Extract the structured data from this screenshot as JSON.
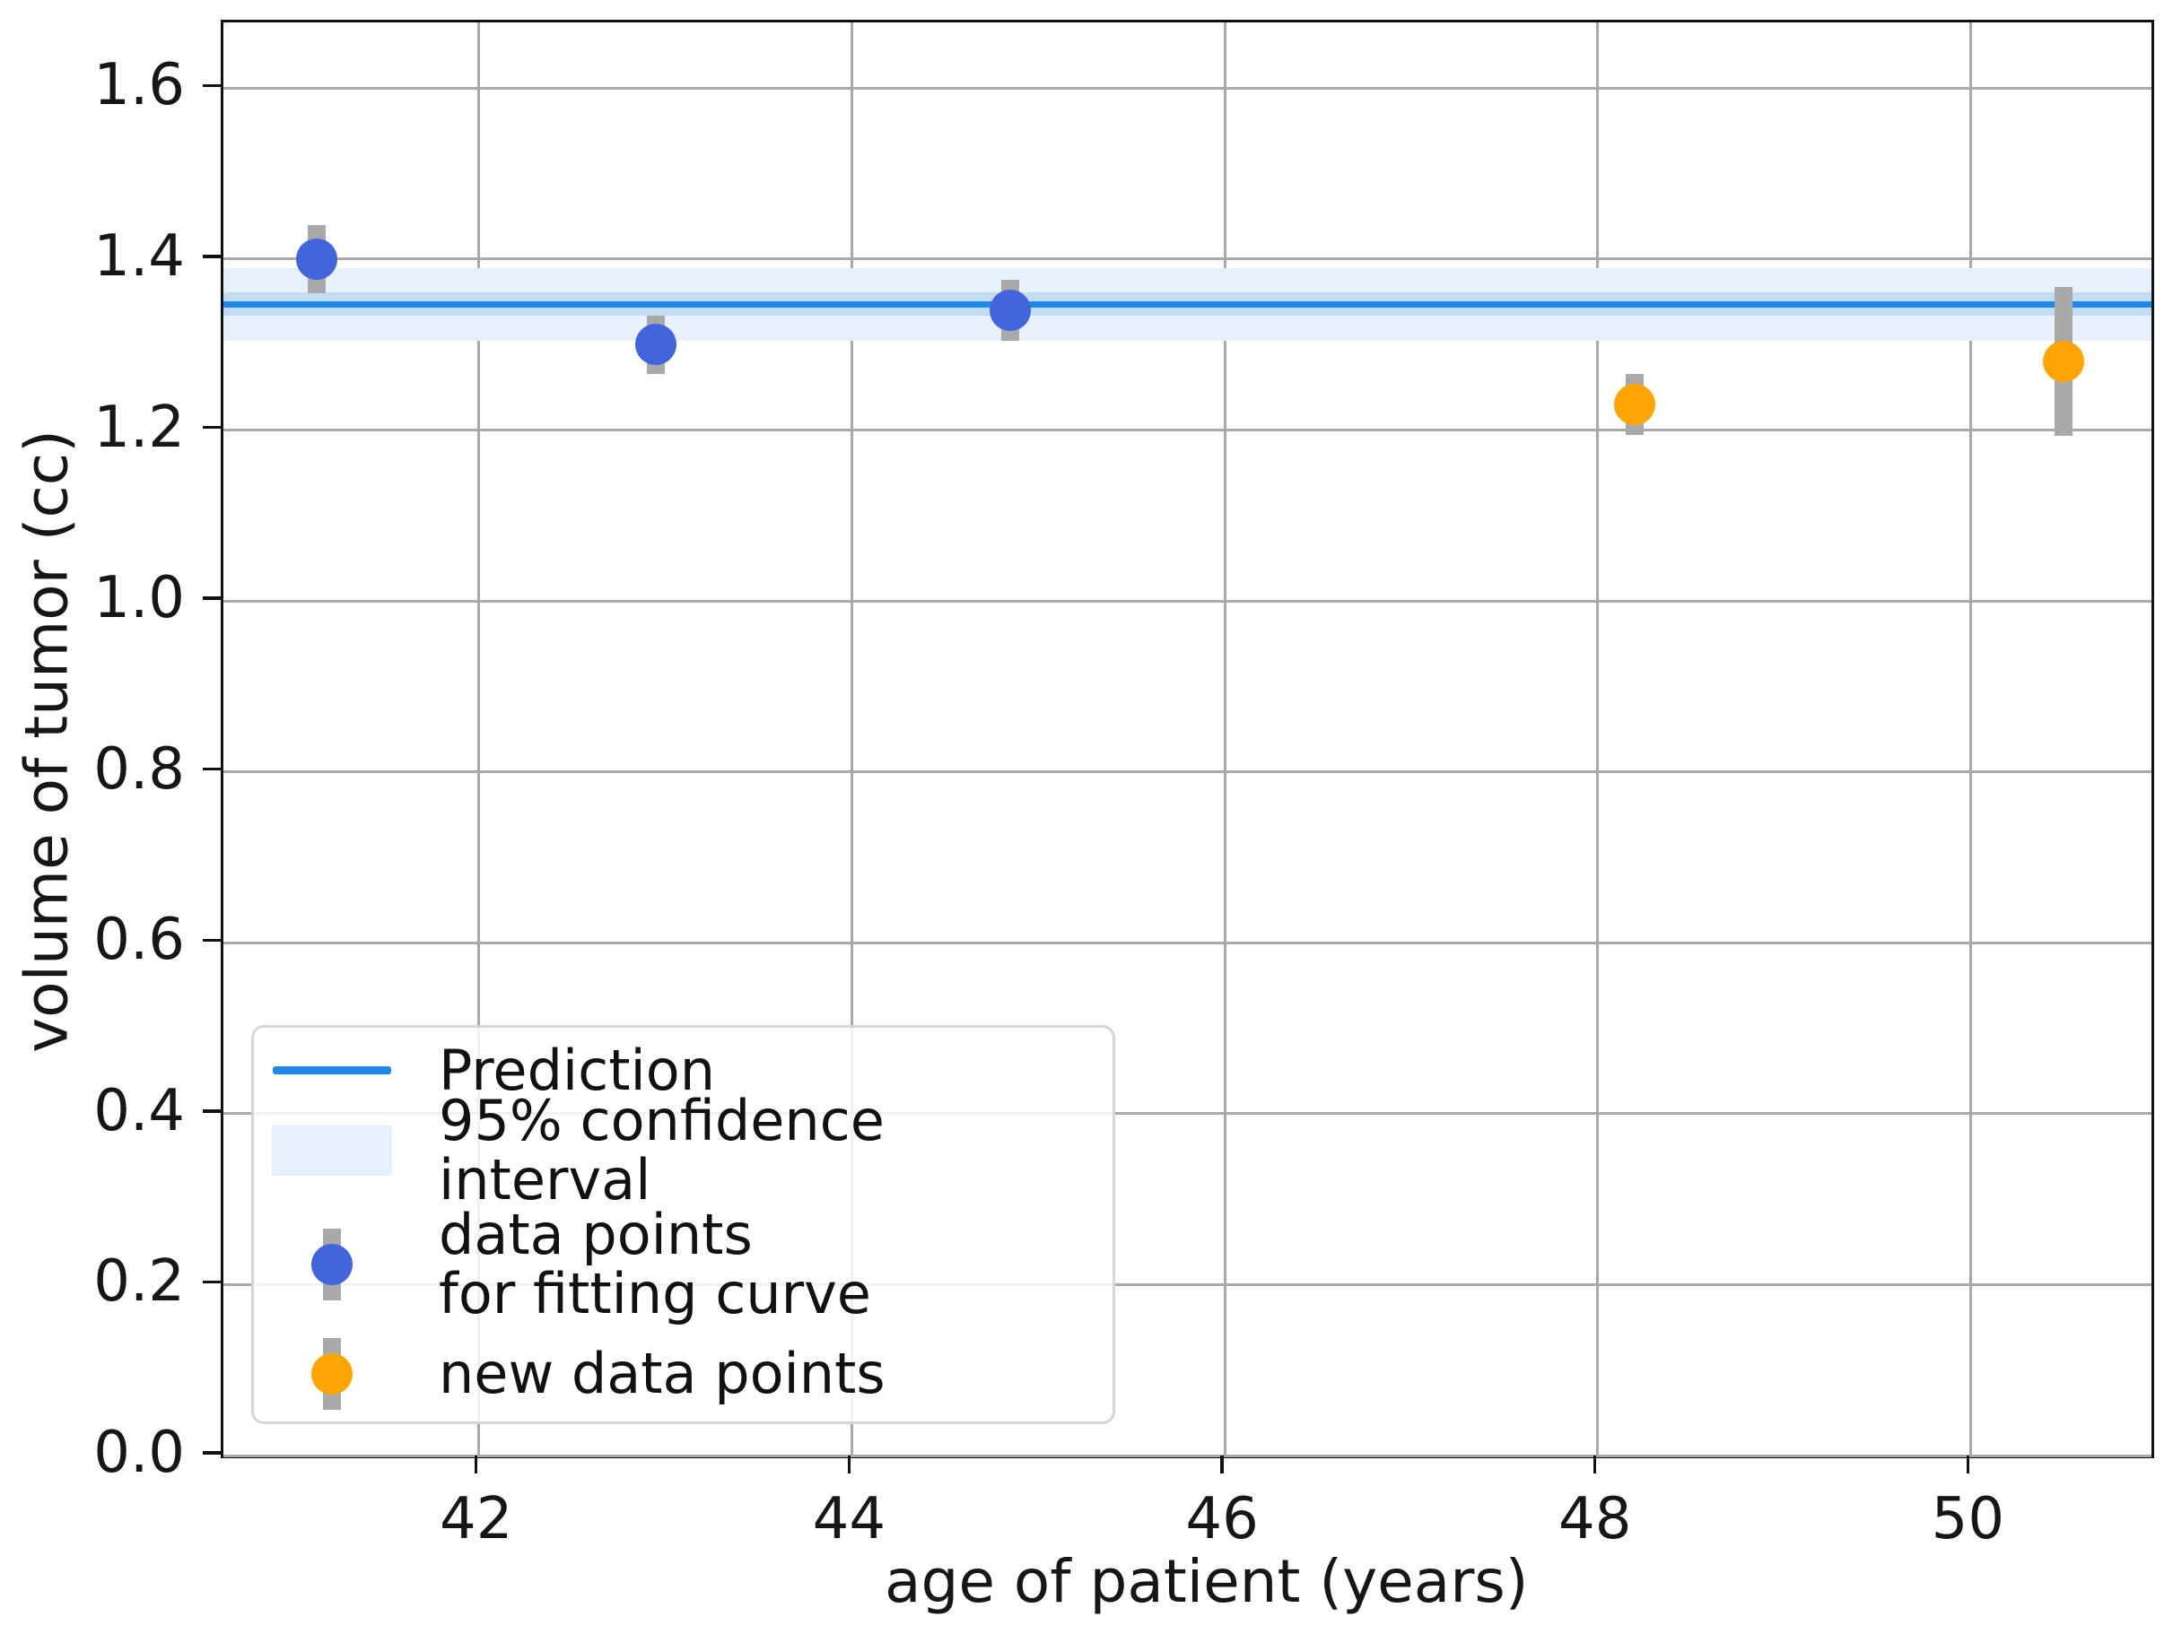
{
  "chart_data": {
    "type": "scatter",
    "title": "",
    "xlabel": "age of patient (years)",
    "ylabel": "volume of tumor (cc)",
    "xlim": [
      40.63,
      50.97
    ],
    "ylim": [
      0,
      1.677
    ],
    "x_ticks": [
      42,
      44,
      46,
      48,
      50
    ],
    "y_ticks": [
      0.0,
      0.2,
      0.4,
      0.6,
      0.8,
      1.0,
      1.2,
      1.4,
      1.6
    ],
    "grid": true,
    "prediction": {
      "label": "Prediction",
      "value": 1.347
    },
    "confidence_interval": {
      "label": "95% confidence interval",
      "low": 1.304,
      "high": 1.389
    },
    "series": [
      {
        "name": "data points\nfor fitting curve",
        "points": [
          {
            "x": 41.13,
            "y": 1.4,
            "yerr": 0.04
          },
          {
            "x": 42.95,
            "y": 1.3,
            "yerr": 0.034
          },
          {
            "x": 44.85,
            "y": 1.34,
            "yerr": 0.036
          }
        ]
      },
      {
        "name": "new data points",
        "points": [
          {
            "x": 48.2,
            "y": 1.23,
            "yerr": 0.036
          },
          {
            "x": 50.5,
            "y": 1.28,
            "yerr": 0.087
          }
        ]
      }
    ],
    "legend": {
      "position": "lower left",
      "items": [
        {
          "label": "Prediction",
          "type": "line"
        },
        {
          "label": "95% confidence interval",
          "type": "patch"
        },
        {
          "label": "data points\nfor fitting curve",
          "type": "marker-blue"
        },
        {
          "label": "new data points",
          "type": "marker-orange"
        }
      ]
    },
    "colors": {
      "prediction_line": "#1f88e8",
      "ci_band": "#e8f1fb",
      "ci_band_inner": "#c3dcf4",
      "fit_points": "#4365db",
      "new_points": "#ffa503",
      "error_bar": "#a9a9a9",
      "grid": "#a9a9a9",
      "spine": "#111111"
    }
  }
}
